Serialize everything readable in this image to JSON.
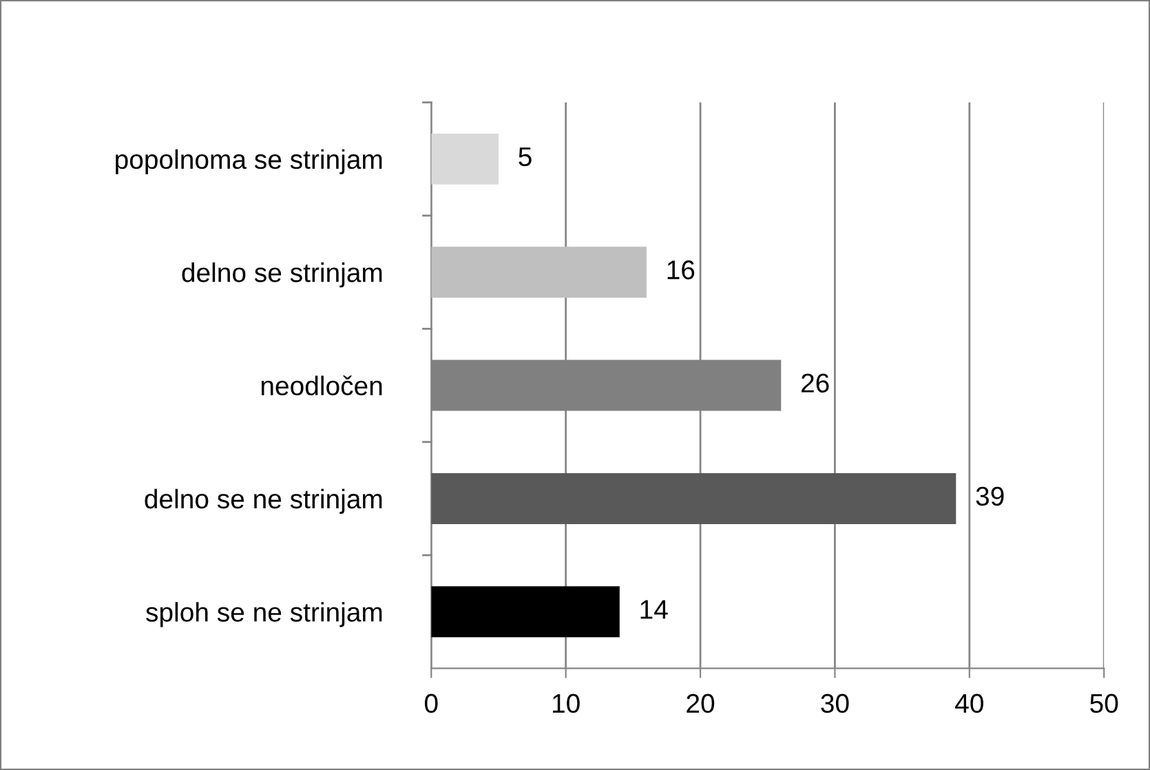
{
  "chart_data": {
    "type": "bar",
    "orientation": "horizontal",
    "categories": [
      "popolnoma se strinjam",
      "delno se strinjam",
      "neodločen",
      "delno se ne strinjam",
      "sploh se ne strinjam"
    ],
    "values": [
      5,
      16,
      26,
      39,
      14
    ],
    "colors": [
      "#d9d9d9",
      "#bfbfbf",
      "#808080",
      "#595959",
      "#000000"
    ],
    "xlim": [
      0,
      50
    ],
    "xticks": [
      0,
      10,
      20,
      30,
      40,
      50
    ],
    "grid": "x",
    "data_labels": true
  }
}
